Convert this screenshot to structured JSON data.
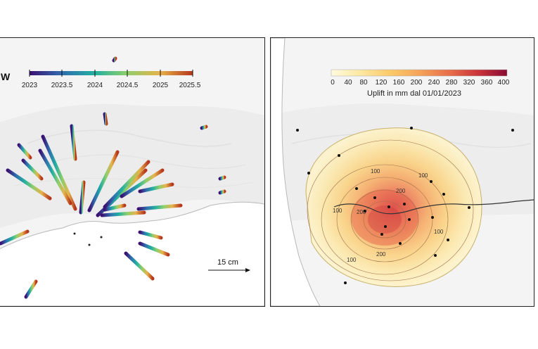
{
  "left_map": {
    "panel_letter_partial": "W",
    "colorbar_ticks": [
      "2023",
      "2023.5",
      "2024",
      "2024.5",
      "2025",
      "2025.5"
    ],
    "colorbar_colors": [
      "#3b0f70",
      "#2f6fb0",
      "#23b0a0",
      "#8fcf6b",
      "#e8b24a",
      "#b5361c"
    ],
    "scale_label": "15 cm"
  },
  "right_map": {
    "colorbar_ticks": [
      "0",
      "40",
      "80",
      "120",
      "160",
      "200",
      "240",
      "280",
      "320",
      "360",
      "400"
    ],
    "colorbar_colors": [
      "#fffbe0",
      "#fde7a0",
      "#fbc96a",
      "#f5a45a",
      "#e86f4a",
      "#c8333a",
      "#8a0b32"
    ],
    "colorbar_title": "Uplift in mm dal 01/01/2023",
    "contour_labels": [
      "100",
      "100",
      "200",
      "100",
      "200",
      "100",
      "100",
      "200"
    ]
  }
}
